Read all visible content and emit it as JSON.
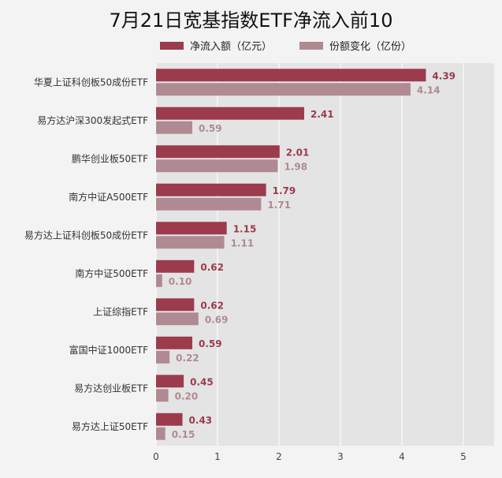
{
  "chart_data": {
    "type": "bar",
    "orientation": "horizontal",
    "title": "7月21日宽基指数ETF净流入前10",
    "categories": [
      "华夏上证科创板50成份ETF",
      "易方达沪深300发起式ETF",
      "鹏华创业板50ETF",
      "南方中证A500ETF",
      "易方达上证科创板50成份ETF",
      "南方中证500ETF",
      "上证综指ETF",
      "富国中证1000ETF",
      "易方达创业板ETF",
      "易方达上证50ETF"
    ],
    "series": [
      {
        "name": "净流入额（亿元）",
        "color": "#9b3b4c",
        "values": [
          4.39,
          2.41,
          2.01,
          1.79,
          1.15,
          0.62,
          0.62,
          0.59,
          0.45,
          0.43
        ],
        "labels": [
          "4.39",
          "2.41",
          "2.01",
          "1.79",
          "1.15",
          "0.62",
          "0.62",
          "0.59",
          "0.45",
          "0.43"
        ]
      },
      {
        "name": "份额变化（亿份）",
        "color": "#b08a92",
        "values": [
          4.14,
          0.59,
          1.98,
          1.71,
          1.11,
          0.1,
          0.69,
          0.22,
          0.2,
          0.15
        ],
        "labels": [
          "4.14",
          "0.59",
          "1.98",
          "1.71",
          "1.11",
          "0.10",
          "0.69",
          "0.22",
          "0.20",
          "0.15"
        ]
      }
    ],
    "xlim": [
      0,
      5.5
    ],
    "xticks": [
      "0",
      "1",
      "2",
      "3",
      "4",
      "5"
    ],
    "xtick_values": [
      0,
      1,
      2,
      3,
      4,
      5
    ],
    "grid": true,
    "legend_position": "top"
  },
  "colors": {
    "plot_bg": "#e4e4e4",
    "page_bg": "#f3f3f3",
    "grid": "#ffffff"
  }
}
